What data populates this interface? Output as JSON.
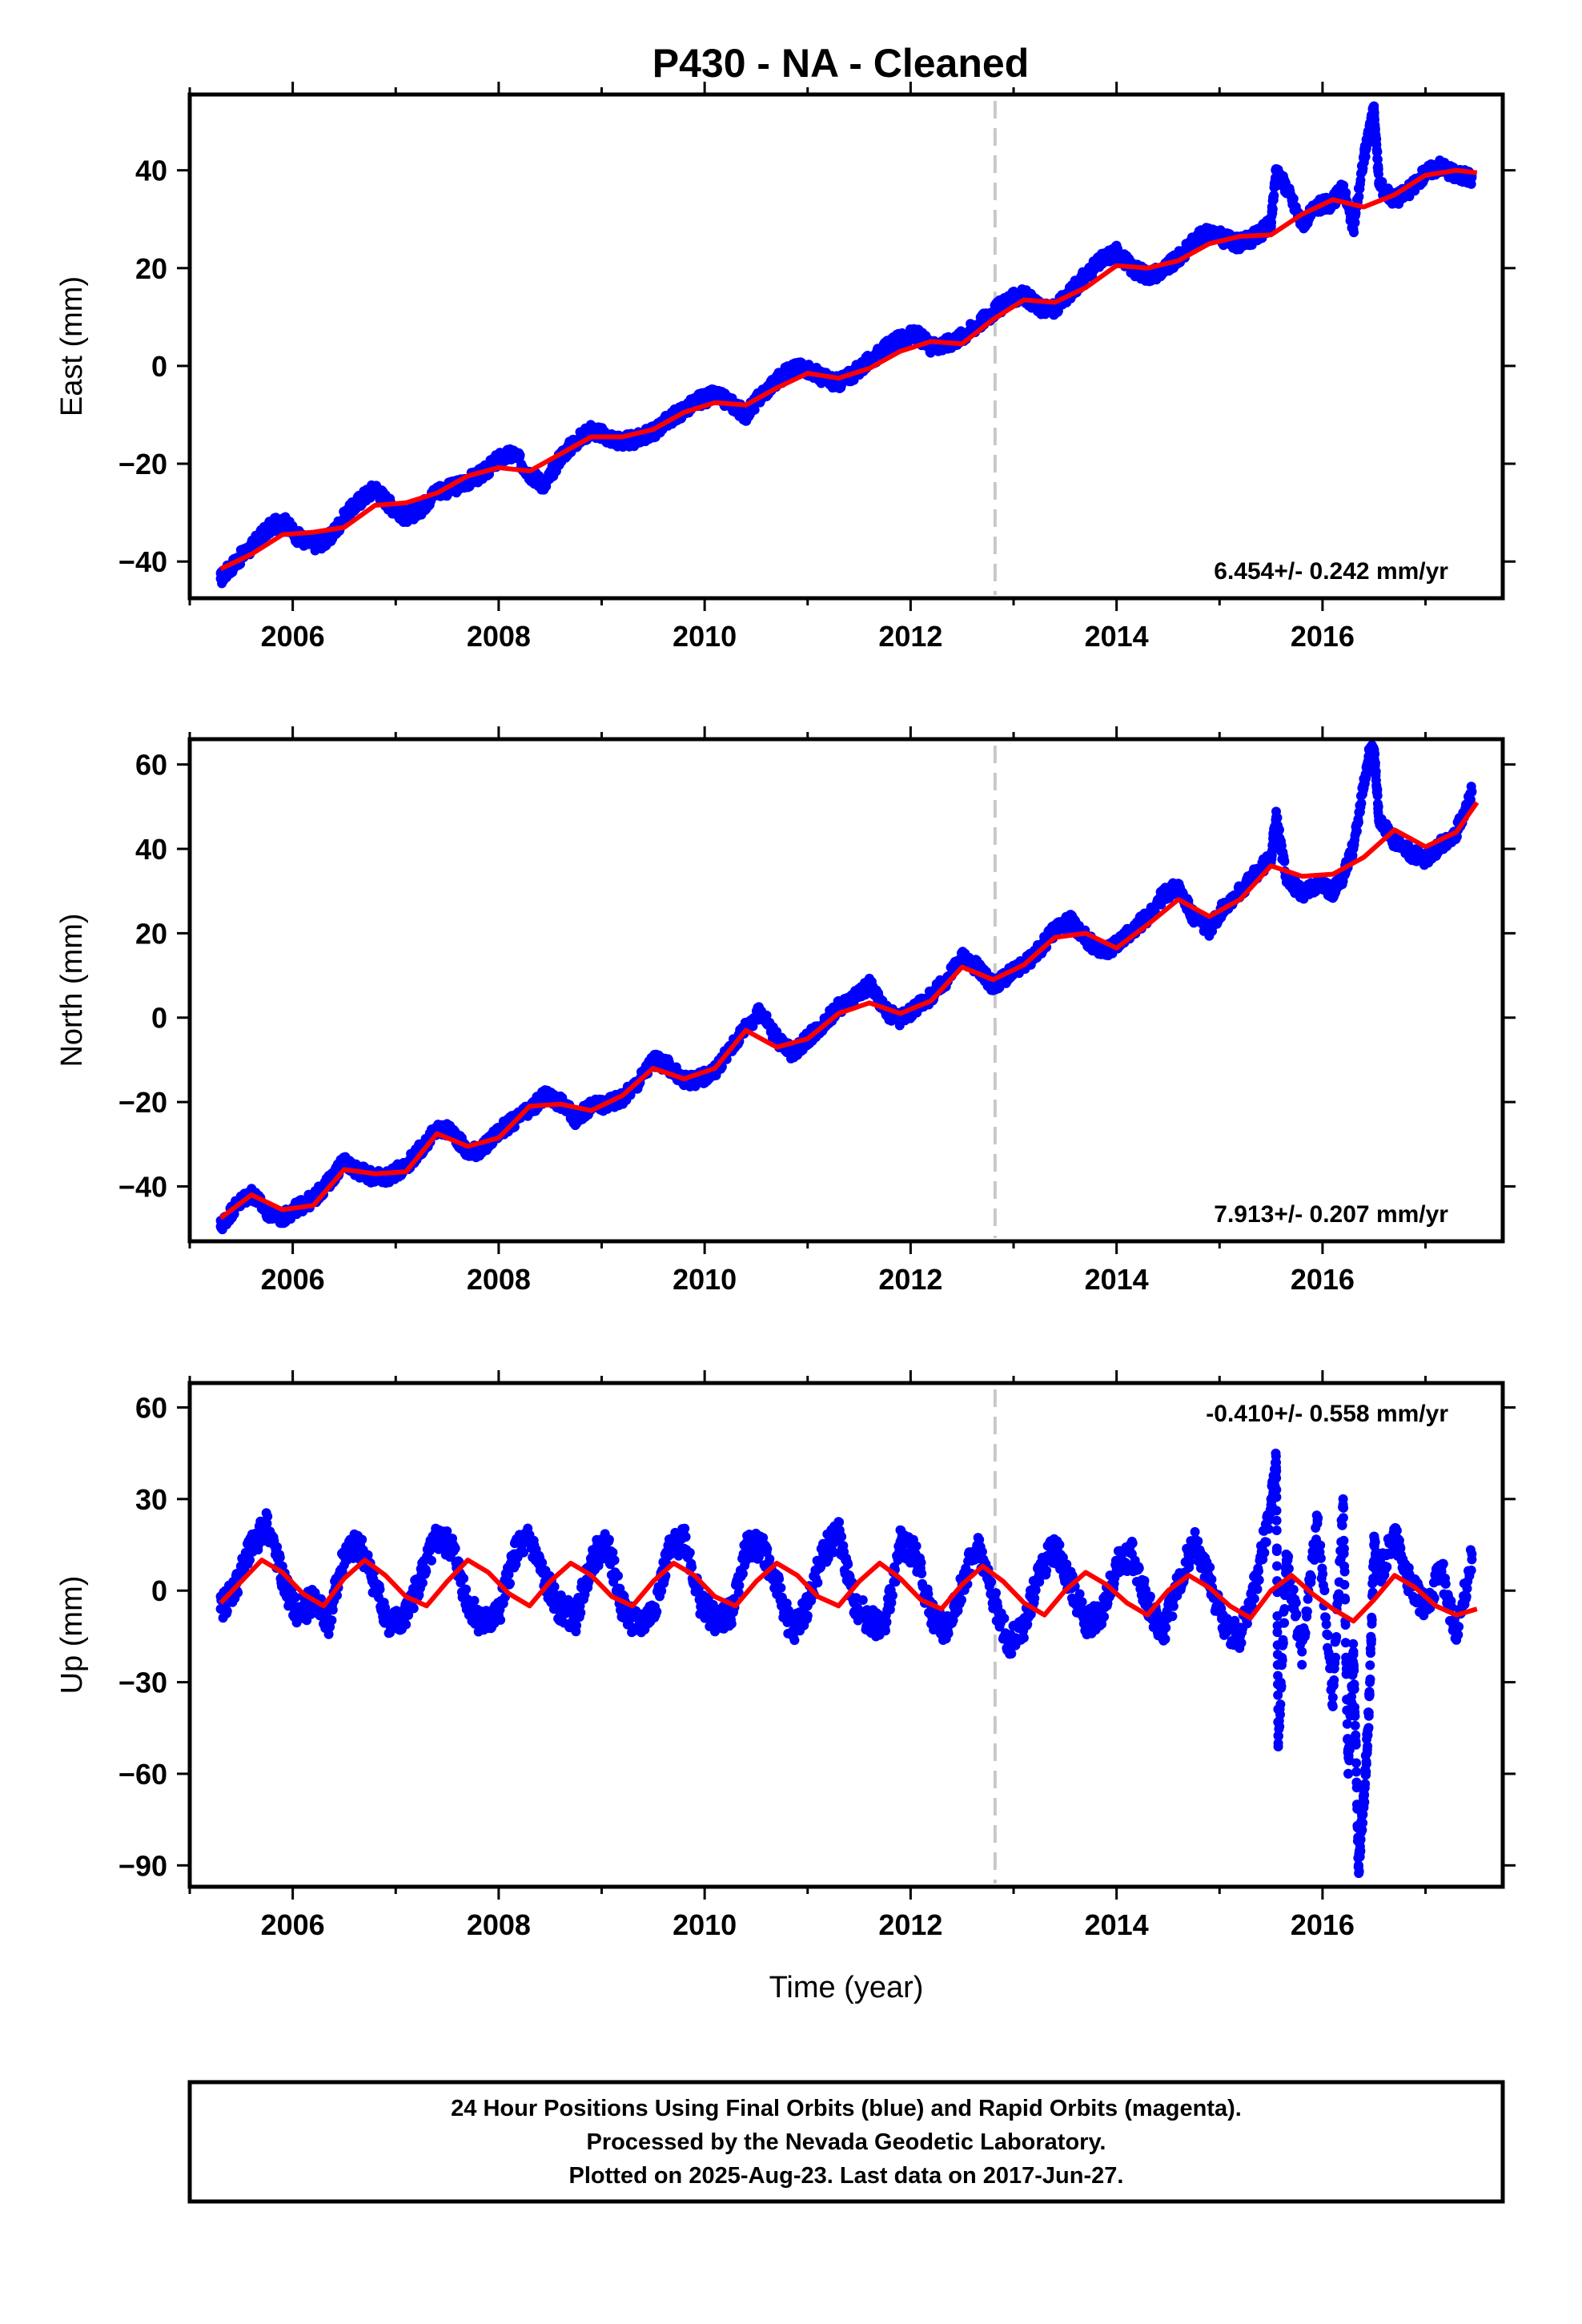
{
  "title": "P430  - NA - Cleaned",
  "footer": {
    "lines": [
      "24 Hour Positions Using Final Orbits (blue) and Rapid Orbits (magenta).",
      "Processed by the Nevada Geodetic Laboratory.",
      "Plotted on 2025-Aug-23. Last data on 2017-Jun-27."
    ]
  },
  "colors": {
    "data": "#0000ff",
    "fit": "#ff0000",
    "equipment_change": "#c8c8c8",
    "frame": "#000000"
  },
  "chart_data": [
    {
      "type": "scatter",
      "component": "east",
      "ylabel": "East (mm)",
      "xlabel": "",
      "xlim": [
        2005.0,
        2017.75
      ],
      "ylim": [
        -47.5,
        55.5
      ],
      "x_ticks": [
        2006,
        2008,
        2010,
        2012,
        2014,
        2016
      ],
      "x_tick_labels": [
        "2006",
        "2008",
        "2010",
        "2012",
        "2014",
        "2016"
      ],
      "y_ticks": [
        -40,
        -20,
        0,
        20,
        40
      ],
      "y_tick_labels": [
        "−40",
        "−20",
        "0",
        "20",
        "40"
      ],
      "rate_label": "6.454+/- 0.242 mm/yr",
      "rate_position": "bottom-right",
      "equipment_change_year": 2012.82,
      "series_fit": {
        "x": [
          2005.3,
          2005.6,
          2005.9,
          2006.2,
          2006.5,
          2006.8,
          2007.1,
          2007.4,
          2007.7,
          2008.0,
          2008.3,
          2008.6,
          2008.9,
          2009.2,
          2009.5,
          2009.8,
          2010.1,
          2010.4,
          2010.7,
          2011.0,
          2011.3,
          2011.6,
          2011.9,
          2012.2,
          2012.5,
          2012.8,
          2013.1,
          2013.4,
          2013.7,
          2014.0,
          2014.3,
          2014.6,
          2014.9,
          2015.2,
          2015.5,
          2015.8,
          2016.1,
          2016.4,
          2016.7,
          2017.0,
          2017.3,
          2017.5
        ],
        "y": [
          -41.5,
          -38.5,
          -34.5,
          -34.0,
          -33.0,
          -28.5,
          -28.0,
          -26.0,
          -22.5,
          -20.8,
          -21.5,
          -18.0,
          -14.5,
          -14.5,
          -13.0,
          -9.5,
          -7.5,
          -8.0,
          -4.5,
          -1.5,
          -2.5,
          -0.5,
          3.0,
          5.0,
          4.5,
          9.5,
          13.5,
          13.0,
          16.0,
          20.5,
          20.0,
          21.5,
          25.0,
          26.5,
          26.8,
          31.0,
          34.0,
          32.5,
          35.0,
          39.0,
          40.0,
          39.5
        ]
      },
      "series_points": {
        "x": [
          2005.3,
          2005.45,
          2005.6,
          2005.75,
          2005.9,
          2006.05,
          2006.2,
          2006.35,
          2006.5,
          2006.65,
          2006.8,
          2006.95,
          2007.1,
          2007.25,
          2007.4,
          2007.55,
          2007.7,
          2007.85,
          2008.0,
          2008.15,
          2008.3,
          2008.45,
          2008.6,
          2008.75,
          2008.9,
          2009.05,
          2009.2,
          2009.35,
          2009.5,
          2009.65,
          2009.8,
          2009.95,
          2010.1,
          2010.25,
          2010.4,
          2010.55,
          2010.7,
          2010.85,
          2011.0,
          2011.15,
          2011.3,
          2011.45,
          2011.6,
          2011.75,
          2011.9,
          2012.05,
          2012.2,
          2012.35,
          2012.5,
          2012.65,
          2012.8,
          2012.95,
          2013.1,
          2013.25,
          2013.4,
          2013.55,
          2013.7,
          2013.85,
          2014.0,
          2014.15,
          2014.3,
          2014.45,
          2014.6,
          2014.75,
          2014.9,
          2015.05,
          2015.2,
          2015.35,
          2015.5,
          2015.55,
          2015.65,
          2015.8,
          2015.95,
          2016.1,
          2016.2,
          2016.3,
          2016.4,
          2016.45,
          2016.5,
          2016.55,
          2016.7,
          2016.85,
          2017.0,
          2017.15,
          2017.3,
          2017.45
        ],
        "y": [
          -43.5,
          -40.0,
          -37.0,
          -33.5,
          -31.5,
          -35.0,
          -36.5,
          -35.5,
          -31.0,
          -27.5,
          -25.0,
          -28.5,
          -31.0,
          -29.0,
          -25.5,
          -25.0,
          -23.5,
          -22.0,
          -19.0,
          -18.0,
          -22.0,
          -24.5,
          -18.5,
          -15.5,
          -13.0,
          -14.5,
          -15.5,
          -15.0,
          -13.5,
          -11.0,
          -9.0,
          -7.0,
          -6.0,
          -7.5,
          -10.0,
          -6.0,
          -3.0,
          -0.5,
          -0.5,
          -2.5,
          -3.5,
          -1.5,
          1.0,
          3.5,
          5.5,
          6.5,
          4.0,
          4.5,
          6.0,
          8.5,
          11.0,
          13.5,
          14.5,
          12.0,
          11.5,
          15.0,
          18.5,
          21.5,
          23.5,
          20.0,
          18.5,
          19.5,
          22.0,
          25.5,
          27.5,
          26.0,
          25.0,
          26.5,
          29.0,
          40.0,
          36.5,
          29.0,
          32.5,
          33.5,
          36.5,
          28.0,
          42.5,
          47.5,
          52.5,
          37.0,
          34.0,
          36.0,
          39.5,
          41.0,
          39.0,
          38.5
        ]
      }
    },
    {
      "type": "scatter",
      "component": "north",
      "ylabel": "North (mm)",
      "xlabel": "",
      "xlim": [
        2005.0,
        2017.75
      ],
      "ylim": [
        -53.0,
        66.0
      ],
      "x_ticks": [
        2006,
        2008,
        2010,
        2012,
        2014,
        2016
      ],
      "x_tick_labels": [
        "2006",
        "2008",
        "2010",
        "2012",
        "2014",
        "2016"
      ],
      "y_ticks": [
        -40,
        -20,
        0,
        20,
        40,
        60
      ],
      "y_tick_labels": [
        "−40",
        "−20",
        "0",
        "20",
        "40",
        "60"
      ],
      "rate_label": "7.913+/- 0.207 mm/yr",
      "rate_position": "bottom-right",
      "equipment_change_year": 2012.82,
      "series_fit": {
        "x": [
          2005.3,
          2005.6,
          2005.9,
          2006.2,
          2006.5,
          2006.8,
          2007.1,
          2007.4,
          2007.7,
          2008.0,
          2008.3,
          2008.6,
          2008.9,
          2009.2,
          2009.5,
          2009.8,
          2010.1,
          2010.4,
          2010.7,
          2011.0,
          2011.3,
          2011.6,
          2011.9,
          2012.2,
          2012.5,
          2012.8,
          2013.1,
          2013.4,
          2013.7,
          2014.0,
          2014.3,
          2014.6,
          2014.9,
          2015.2,
          2015.5,
          2015.8,
          2016.1,
          2016.4,
          2016.7,
          2017.0,
          2017.3,
          2017.5
        ],
        "y": [
          -47.5,
          -42.0,
          -45.5,
          -44.5,
          -36.0,
          -37.0,
          -36.5,
          -27.5,
          -30.5,
          -28.5,
          -21.0,
          -20.5,
          -22.0,
          -18.5,
          -12.0,
          -14.5,
          -12.0,
          -3.0,
          -7.0,
          -5.0,
          1.0,
          3.5,
          1.0,
          4.0,
          12.0,
          9.0,
          12.5,
          19.0,
          20.0,
          16.5,
          22.0,
          28.0,
          24.0,
          28.0,
          36.0,
          33.5,
          34.0,
          38.0,
          44.5,
          40.5,
          44.0,
          51.0
        ]
      },
      "series_points": {
        "x": [
          2005.3,
          2005.45,
          2005.6,
          2005.75,
          2005.9,
          2006.05,
          2006.2,
          2006.35,
          2006.5,
          2006.65,
          2006.8,
          2006.95,
          2007.1,
          2007.25,
          2007.4,
          2007.55,
          2007.7,
          2007.85,
          2008.0,
          2008.15,
          2008.3,
          2008.45,
          2008.6,
          2008.75,
          2008.9,
          2009.05,
          2009.2,
          2009.35,
          2009.5,
          2009.65,
          2009.8,
          2009.95,
          2010.1,
          2010.25,
          2010.4,
          2010.55,
          2010.7,
          2010.85,
          2011.0,
          2011.15,
          2011.3,
          2011.45,
          2011.6,
          2011.75,
          2011.9,
          2012.05,
          2012.2,
          2012.35,
          2012.5,
          2012.65,
          2012.8,
          2012.95,
          2013.1,
          2013.25,
          2013.4,
          2013.55,
          2013.7,
          2013.85,
          2014.0,
          2014.15,
          2014.3,
          2014.45,
          2014.6,
          2014.75,
          2014.9,
          2015.05,
          2015.2,
          2015.35,
          2015.5,
          2015.55,
          2015.65,
          2015.8,
          2015.95,
          2016.1,
          2016.2,
          2016.3,
          2016.4,
          2016.45,
          2016.5,
          2016.55,
          2016.7,
          2016.85,
          2017.0,
          2017.15,
          2017.3,
          2017.45
        ],
        "y": [
          -49.5,
          -44.5,
          -41.5,
          -46.0,
          -47.5,
          -45.0,
          -43.0,
          -39.0,
          -34.0,
          -36.5,
          -38.0,
          -37.5,
          -35.0,
          -31.0,
          -26.5,
          -27.0,
          -32.0,
          -31.0,
          -27.0,
          -24.5,
          -22.0,
          -18.5,
          -20.0,
          -24.0,
          -21.0,
          -20.5,
          -19.0,
          -15.5,
          -10.0,
          -11.5,
          -15.0,
          -14.5,
          -12.5,
          -7.5,
          -2.0,
          1.5,
          -5.0,
          -8.5,
          -5.0,
          -1.5,
          2.5,
          4.5,
          8.0,
          1.5,
          -0.5,
          2.5,
          5.0,
          9.0,
          14.5,
          12.0,
          7.5,
          10.0,
          12.5,
          16.0,
          21.0,
          23.0,
          19.0,
          15.0,
          17.5,
          20.5,
          24.0,
          29.0,
          31.0,
          23.5,
          21.0,
          26.5,
          30.0,
          34.0,
          38.0,
          47.5,
          33.0,
          29.5,
          31.5,
          30.0,
          33.5,
          40.5,
          55.0,
          62.0,
          63.5,
          47.0,
          41.5,
          39.0,
          37.5,
          41.0,
          44.0,
          53.5
        ]
      }
    },
    {
      "type": "scatter",
      "component": "up",
      "ylabel": "Up (mm)",
      "xlabel": "Time (year)",
      "xlim": [
        2005.0,
        2017.75
      ],
      "ylim": [
        -97.0,
        68.0
      ],
      "x_ticks": [
        2006,
        2008,
        2010,
        2012,
        2014,
        2016
      ],
      "x_tick_labels": [
        "2006",
        "2008",
        "2010",
        "2012",
        "2014",
        "2016"
      ],
      "y_ticks": [
        -90,
        -60,
        -30,
        0,
        30,
        60
      ],
      "y_tick_labels": [
        "−90",
        "−60",
        "−30",
        "0",
        "30",
        "60"
      ],
      "rate_label": "-0.410+/- 0.558 mm/yr",
      "rate_position": "top-right",
      "equipment_change_year": 2012.82,
      "series_fit": {
        "x": [
          2005.3,
          2005.5,
          2005.7,
          2005.9,
          2006.1,
          2006.3,
          2006.5,
          2006.7,
          2006.9,
          2007.1,
          2007.3,
          2007.5,
          2007.7,
          2007.9,
          2008.1,
          2008.3,
          2008.5,
          2008.7,
          2008.9,
          2009.1,
          2009.3,
          2009.5,
          2009.7,
          2009.9,
          2010.1,
          2010.3,
          2010.5,
          2010.7,
          2010.9,
          2011.1,
          2011.3,
          2011.5,
          2011.7,
          2011.9,
          2012.1,
          2012.3,
          2012.5,
          2012.7,
          2012.9,
          2013.1,
          2013.3,
          2013.5,
          2013.7,
          2013.9,
          2014.1,
          2014.3,
          2014.5,
          2014.7,
          2014.9,
          2015.1,
          2015.3,
          2015.5,
          2015.7,
          2015.9,
          2016.1,
          2016.3,
          2016.5,
          2016.7,
          2016.9,
          2017.1,
          2017.3,
          2017.5
        ],
        "y": [
          -4,
          3,
          10,
          6,
          -1,
          -5,
          4,
          10,
          5,
          -2,
          -5,
          3,
          10,
          6,
          -1,
          -5,
          3,
          9,
          5,
          -2,
          -5,
          3,
          9,
          5,
          -2,
          -5,
          3,
          9,
          5,
          -2,
          -5,
          3,
          9,
          4,
          -3,
          -6,
          2,
          8,
          3,
          -4,
          -8,
          0,
          6,
          2,
          -4,
          -8,
          0,
          5,
          1,
          -5,
          -9,
          0,
          5,
          -1,
          -6,
          -10,
          -3,
          5,
          1,
          -5,
          -8,
          -6
        ]
      },
      "series_points": {
        "x": [
          2005.3,
          2005.45,
          2005.6,
          2005.75,
          2005.9,
          2006.05,
          2006.2,
          2006.35,
          2006.5,
          2006.65,
          2006.8,
          2006.95,
          2007.1,
          2007.25,
          2007.4,
          2007.55,
          2007.7,
          2007.85,
          2008.0,
          2008.15,
          2008.3,
          2008.45,
          2008.6,
          2008.75,
          2008.9,
          2009.05,
          2009.2,
          2009.35,
          2009.5,
          2009.65,
          2009.8,
          2009.95,
          2010.1,
          2010.25,
          2010.4,
          2010.55,
          2010.7,
          2010.85,
          2011.0,
          2011.15,
          2011.3,
          2011.45,
          2011.6,
          2011.75,
          2011.9,
          2012.05,
          2012.2,
          2012.35,
          2012.5,
          2012.65,
          2012.8,
          2012.95,
          2013.1,
          2013.25,
          2013.4,
          2013.55,
          2013.7,
          2013.85,
          2014.0,
          2014.15,
          2014.3,
          2014.45,
          2014.6,
          2014.75,
          2014.9,
          2015.05,
          2015.2,
          2015.35,
          2015.5,
          2015.55,
          2015.57,
          2015.65,
          2015.8,
          2015.95,
          2016.1,
          2016.2,
          2016.25,
          2016.3,
          2016.35,
          2016.4,
          2016.45,
          2016.5,
          2016.55,
          2016.7,
          2016.85,
          2017.0,
          2017.15,
          2017.3,
          2017.45
        ],
        "y": [
          -6,
          2,
          14,
          22,
          4,
          -8,
          -3,
          -10,
          12,
          15,
          2,
          -12,
          -8,
          5,
          17,
          14,
          -4,
          -11,
          -8,
          12,
          17,
          3,
          -6,
          -9,
          10,
          16,
          -5,
          -12,
          -7,
          12,
          18,
          -3,
          -10,
          -8,
          14,
          15,
          2,
          -14,
          -5,
          12,
          19,
          -4,
          -10,
          -12,
          16,
          12,
          -8,
          -13,
          2,
          15,
          -2,
          -18,
          -12,
          6,
          14,
          3,
          -11,
          -8,
          8,
          12,
          -4,
          -14,
          2,
          16,
          4,
          -12,
          -15,
          2,
          28,
          42,
          -50,
          10,
          -20,
          22,
          -35,
          30,
          -60,
          -20,
          -90,
          -70,
          -40,
          15,
          5,
          18,
          2,
          -6,
          8,
          -16,
          12
        ]
      }
    }
  ]
}
